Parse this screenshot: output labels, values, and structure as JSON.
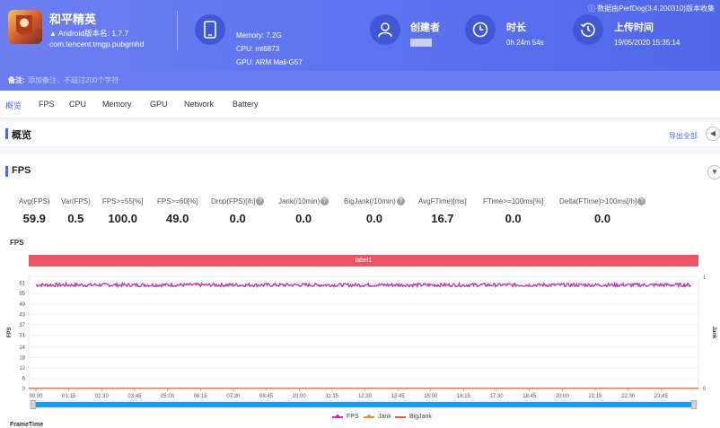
{
  "header": {
    "app_name": "和平精英",
    "android_version": "Android版本名: 1.7.7",
    "package": "com.tencent.tmgp.pubgmhd",
    "device": [
      "Memory: 7.2G",
      "CPU: mt6873",
      "GPU: ARM Mali-G57"
    ],
    "creator_label": "创建者",
    "duration_label": "时长",
    "duration_value": "0h 24m 54s",
    "upload_label": "上传时间",
    "upload_value": "19/05/2020 15:35:14",
    "source_note": "数据由PerfDog(3.4.200310)版本收集",
    "note_label": "备注:",
    "note_placeholder": "添加备注，不超过200个字符"
  },
  "tabs": [
    "概览",
    "FPS",
    "CPU",
    "Memory",
    "GPU",
    "Network",
    "Battery"
  ],
  "overview": {
    "title": "概览",
    "export_label": "导出全部"
  },
  "fps_section": {
    "title": "FPS",
    "stats": [
      {
        "label": "Avg(FPS)",
        "value": "59.9",
        "help": false
      },
      {
        "label": "Var(FPS)",
        "value": "0.5",
        "help": false
      },
      {
        "label": "FPS>=55[%]",
        "value": "100.0",
        "help": false
      },
      {
        "label": "FPS>=60[%]",
        "value": "49.0",
        "help": false
      },
      {
        "label": "Drop(FPS)[/h]",
        "value": "0.0",
        "help": true
      },
      {
        "label": "Jank(/10min)",
        "value": "0.0",
        "help": true
      },
      {
        "label": "BigJank(/10min)",
        "value": "0.0",
        "help": true
      },
      {
        "label": "AvgFTime)[ms]",
        "value": "16.7",
        "help": false
      },
      {
        "label": "FTime>=100ms[%]",
        "value": "0.0",
        "help": false
      },
      {
        "label": "Delta(FTime)>100ms[/h]",
        "value": "0.0",
        "help": true
      }
    ],
    "help_glyph": "?",
    "chart_title": "FPS",
    "label_bar": "label1",
    "legend": [
      "FPS",
      "Jank",
      "BigJank"
    ],
    "bottom_label": "FrameTime"
  },
  "colors": {
    "accent": "#4f67e8",
    "fps": "#c238b8",
    "jank": "#f08a3c",
    "bigjank": "#e05a4a",
    "label_bar": "#ea5563"
  },
  "chart_data": {
    "type": "line",
    "title": "FPS",
    "ylabel": "FPS",
    "y2label": "Jank",
    "yticks": [
      0,
      6,
      12,
      18,
      24,
      31,
      37,
      43,
      49,
      55,
      61
    ],
    "y2ticks": [
      0,
      1
    ],
    "ylim": [
      0,
      65
    ],
    "xticks": [
      "00:00",
      "01:15",
      "02:30",
      "03:45",
      "05:00",
      "06:15",
      "07:30",
      "08:45",
      "10:00",
      "11:15",
      "12:30",
      "13:45",
      "15:00",
      "16:15",
      "17:30",
      "18:45",
      "20:00",
      "21:15",
      "22:30",
      "23:45"
    ],
    "duration_seconds": 1494,
    "series": [
      {
        "name": "FPS",
        "approx_value": 60,
        "range": [
          59,
          61
        ]
      },
      {
        "name": "Jank",
        "approx_value": 0
      },
      {
        "name": "BigJank",
        "approx_value": 0
      }
    ],
    "grid": true,
    "legend_position": "bottom"
  }
}
